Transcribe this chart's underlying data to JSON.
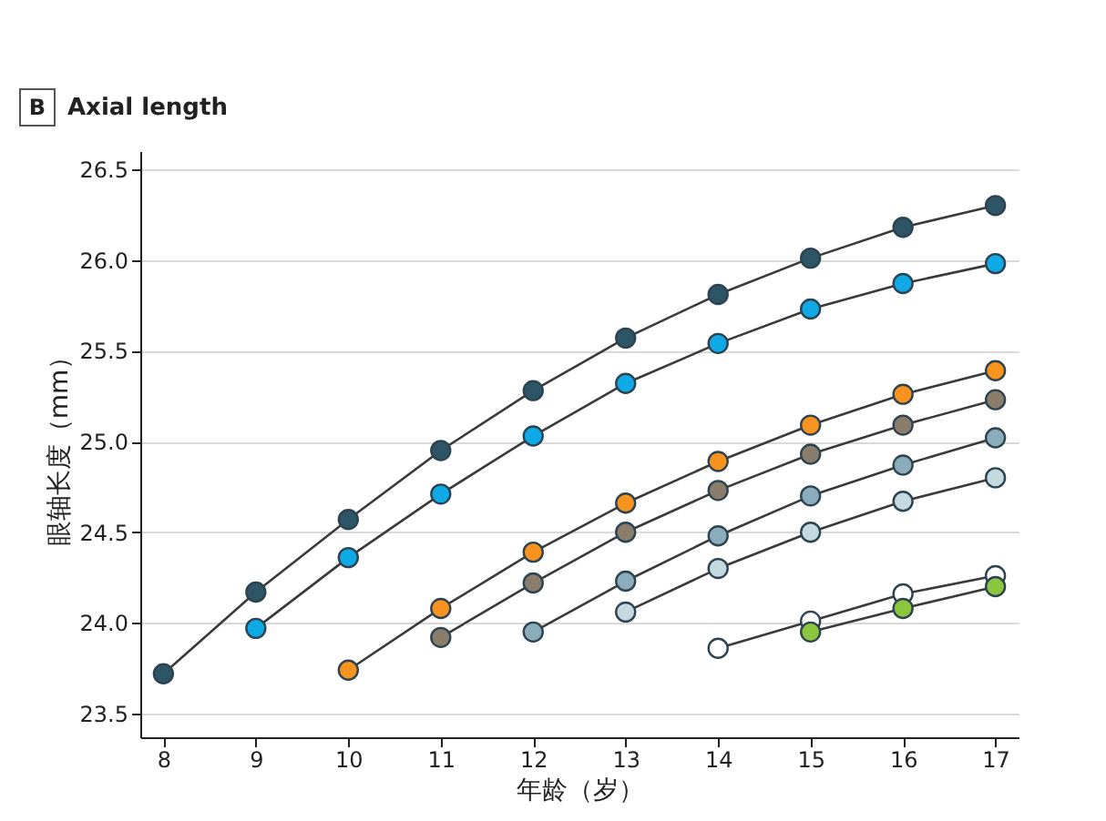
{
  "chart_data": {
    "type": "line",
    "title": "Axial length",
    "annotations": [
      "B"
    ],
    "xlabel": "年龄（岁）",
    "ylabel": "眼轴长度（mm）",
    "x": [
      8,
      9,
      10,
      11,
      12,
      13,
      14,
      15,
      16,
      17
    ],
    "series": [
      {
        "color": "#2d5565",
        "values": [
          23.72,
          24.17,
          24.57,
          24.95,
          25.28,
          25.57,
          25.81,
          26.01,
          26.18,
          26.3
        ]
      },
      {
        "color": "#0fa9e6",
        "values": [
          null,
          23.97,
          24.36,
          24.71,
          25.03,
          25.32,
          25.54,
          25.73,
          25.87,
          25.98
        ]
      },
      {
        "color": "#f7931e",
        "values": [
          null,
          null,
          23.74,
          24.08,
          24.39,
          24.66,
          24.89,
          25.09,
          25.26,
          25.39
        ]
      },
      {
        "color": "#8b7d6b",
        "values": [
          null,
          null,
          null,
          23.92,
          24.22,
          24.5,
          24.73,
          24.93,
          25.09,
          25.23
        ]
      },
      {
        "color": "#8aacbb",
        "values": [
          null,
          null,
          null,
          null,
          23.95,
          24.23,
          24.48,
          24.7,
          24.87,
          25.02
        ]
      },
      {
        "color": "#c5d9e0",
        "values": [
          null,
          null,
          null,
          null,
          null,
          24.06,
          24.3,
          24.5,
          24.67,
          24.8
        ]
      },
      {
        "color": "#ffffff",
        "values": [
          null,
          null,
          null,
          null,
          null,
          null,
          23.86,
          24.01,
          24.16,
          24.26
        ]
      },
      {
        "color": "#8cc63f",
        "values": [
          null,
          null,
          null,
          null,
          null,
          null,
          null,
          23.95,
          24.08,
          24.2
        ]
      }
    ],
    "xlim": [
      7.75,
      17.25
    ],
    "xticks": [
      8,
      9,
      10,
      11,
      12,
      13,
      14,
      15,
      16,
      17
    ],
    "ylim": [
      23.37,
      26.6
    ],
    "yticks": [
      23.5,
      {
        "value": 24,
        "label": "24.0"
      },
      24.5,
      {
        "value": 25,
        "label": "25.0"
      },
      25.5,
      {
        "value": 26,
        "label": "26.0"
      },
      26.5
    ],
    "grid": "y",
    "legend": false,
    "marker": "circle",
    "line_style": "solid"
  }
}
